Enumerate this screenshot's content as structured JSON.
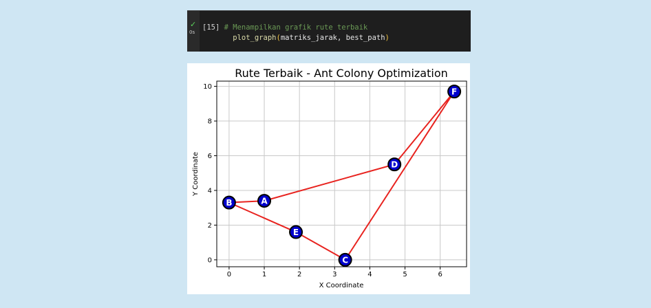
{
  "cell": {
    "status_icon": "checkmark-icon",
    "exec_time": "0s",
    "prompt": "[15]",
    "comment": "# Menampilkan grafik rute terbaik",
    "code_fn": "plot_graph",
    "code_open": "(",
    "code_args": "matriks_jarak, best_path",
    "code_close": ")"
  },
  "colors": {
    "route": "#e8231f",
    "node_fill": "#0000cc",
    "node_stroke": "#000000",
    "node_label": "#ffffff"
  },
  "chart_data": {
    "type": "scatter",
    "title": "Rute Terbaik - Ant Colony Optimization",
    "xlabel": "X Coordinate",
    "ylabel": "Y Coordinate",
    "xlim": [
      -0.35,
      6.75
    ],
    "ylim": [
      -0.4,
      10.3
    ],
    "xticks": [
      0,
      1,
      2,
      3,
      4,
      5,
      6
    ],
    "yticks": [
      0,
      2,
      4,
      6,
      8,
      10
    ],
    "grid": true,
    "nodes": [
      {
        "label": "A",
        "x": 1.0,
        "y": 3.4
      },
      {
        "label": "B",
        "x": 0.0,
        "y": 3.3
      },
      {
        "label": "C",
        "x": 3.3,
        "y": 0.0
      },
      {
        "label": "D",
        "x": 4.7,
        "y": 5.5
      },
      {
        "label": "E",
        "x": 1.9,
        "y": 1.6
      },
      {
        "label": "F",
        "x": 6.4,
        "y": 9.7
      }
    ],
    "route": [
      "A",
      "B",
      "E",
      "C",
      "F",
      "D",
      "A"
    ]
  }
}
